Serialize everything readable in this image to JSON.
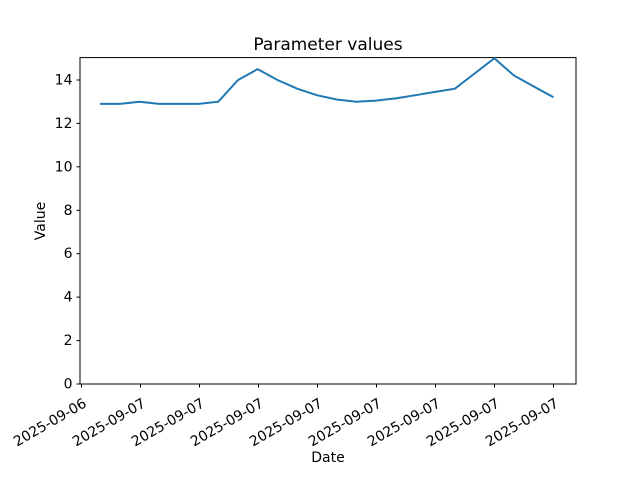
{
  "chart_data": {
    "type": "line",
    "title": "Parameter values",
    "xlabel": "Date",
    "ylabel": "Value",
    "x_tick_labels": [
      "2025-09-06",
      "2025-09-07",
      "2025-09-07",
      "2025-09-07",
      "2025-09-07",
      "2025-09-07",
      "2025-09-07",
      "2025-09-07",
      "2025-09-07"
    ],
    "x_tick_rotation_deg": -30,
    "y_ticks": [
      0,
      2,
      4,
      6,
      8,
      10,
      12,
      14
    ],
    "ylim": [
      0,
      15.03
    ],
    "grid": false,
    "legend": "none",
    "series": [
      {
        "color": "#1f77b4",
        "line_width": 2,
        "values": [
          12.9,
          12.9,
          13.0,
          12.9,
          12.9,
          12.9,
          13.0,
          14.0,
          14.5,
          14.0,
          13.6,
          13.3,
          13.1,
          13.0,
          13.05,
          13.15,
          13.3,
          13.45,
          13.6,
          14.3,
          15.0,
          14.2,
          13.7,
          13.2
        ]
      }
    ],
    "colors": {
      "spine": "#000000",
      "tick": "#000000",
      "text": "#000000",
      "background": "#ffffff"
    }
  }
}
